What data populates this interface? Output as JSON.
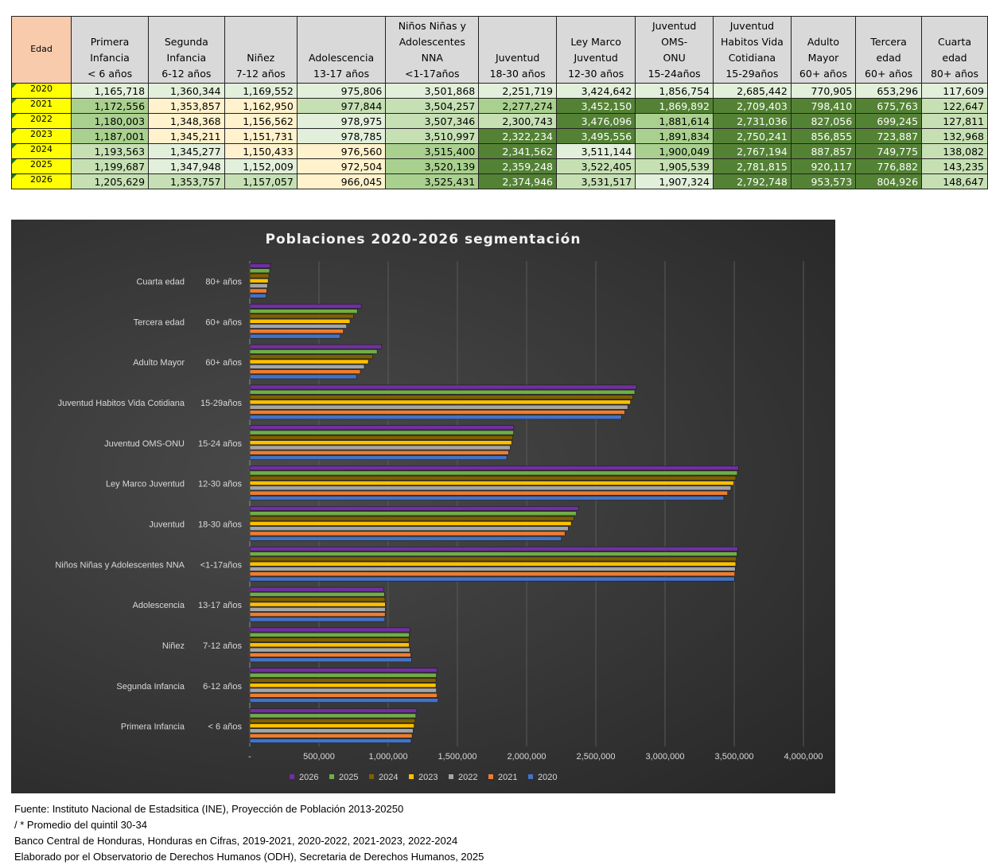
{
  "table": {
    "corner_label": "Edad",
    "columns": [
      {
        "key": "primera_infancia",
        "header": "Primera\nInfancia\n< 6 años"
      },
      {
        "key": "segunda_infancia",
        "header": "Segunda\nInfancia\n6-12 años"
      },
      {
        "key": "ninez",
        "header": "Niñez\n7-12 años"
      },
      {
        "key": "adolescencia",
        "header": "Adolescencia\n13-17 años"
      },
      {
        "key": "nna",
        "header": "Niños Niñas y\nAdolescentes\nNNA\n<1-17años"
      },
      {
        "key": "juventud",
        "header": "Juventud\n18-30 años"
      },
      {
        "key": "ley_marco",
        "header": "Ley Marco\nJuventud\n12-30 años"
      },
      {
        "key": "oms_onu",
        "header": "Juventud OMS-\nONU\n15-24años"
      },
      {
        "key": "habitos",
        "header": "Juventud\nHabitos Vida\nCotidiana\n15-29años"
      },
      {
        "key": "adulto_mayor",
        "header": "Adulto\nMayor\n60+ años"
      },
      {
        "key": "tercera_edad",
        "header": "Tercera\nedad\n60+ años"
      },
      {
        "key": "cuarta_edad",
        "header": "Cuarta edad\n80+ años"
      }
    ],
    "rows": [
      {
        "year": "2020",
        "values": [
          "1,165,718",
          "1,360,344",
          "1,169,552",
          "975,806",
          "3,501,868",
          "2,251,719",
          "3,424,642",
          "1,856,754",
          "2,685,442",
          "770,905",
          "653,296",
          "117,609"
        ],
        "shades": [
          "s0",
          "s0",
          "s0",
          "s0",
          "s0",
          "s0",
          "s0",
          "s0",
          "s0",
          "s0",
          "s0",
          "s0"
        ]
      },
      {
        "year": "2021",
        "values": [
          "1,172,556",
          "1,353,857",
          "1,162,950",
          "977,844",
          "3,504,257",
          "2,277,274",
          "3,452,150",
          "1,869,892",
          "2,709,403",
          "798,410",
          "675,763",
          "122,647"
        ],
        "shades": [
          "s2",
          "sy",
          "sy",
          "s1",
          "s1",
          "s2",
          "s3",
          "s3",
          "s3",
          "s3",
          "s3",
          "s1"
        ]
      },
      {
        "year": "2022",
        "values": [
          "1,180,003",
          "1,348,368",
          "1,156,562",
          "978,975",
          "3,507,346",
          "2,300,743",
          "3,476,096",
          "1,881,614",
          "2,731,036",
          "827,056",
          "699,245",
          "127,811"
        ],
        "shades": [
          "s2",
          "sy",
          "sy",
          "s0",
          "s1",
          "s1",
          "s3",
          "s2",
          "s3",
          "s3",
          "s3",
          "s1"
        ]
      },
      {
        "year": "2023",
        "values": [
          "1,187,001",
          "1,345,211",
          "1,151,731",
          "978,785",
          "3,510,997",
          "2,322,234",
          "3,495,556",
          "1,891,834",
          "2,750,241",
          "856,855",
          "723,887",
          "132,968"
        ],
        "shades": [
          "s2",
          "sy",
          "sy",
          "s0",
          "s1",
          "s3",
          "s3",
          "s2",
          "s3",
          "s3",
          "s3",
          "s1"
        ]
      },
      {
        "year": "2024",
        "values": [
          "1,193,563",
          "1,345,277",
          "1,150,433",
          "976,560",
          "3,515,400",
          "2,341,562",
          "3,511,144",
          "1,900,049",
          "2,767,194",
          "887,857",
          "749,775",
          "138,082"
        ],
        "shades": [
          "s1",
          "s0",
          "sy",
          "sy",
          "s2",
          "s3",
          "s0",
          "s2",
          "s3",
          "s3",
          "s3",
          "s1"
        ]
      },
      {
        "year": "2025",
        "values": [
          "1,199,687",
          "1,347,948",
          "1,152,009",
          "972,504",
          "3,520,139",
          "2,359,248",
          "3,522,405",
          "1,905,539",
          "2,781,815",
          "920,117",
          "776,882",
          "143,235"
        ],
        "shades": [
          "s1",
          "s0",
          "s0",
          "sy",
          "s2",
          "s3",
          "s1",
          "s1",
          "s3",
          "s3",
          "s3",
          "s1"
        ]
      },
      {
        "year": "2026",
        "values": [
          "1,205,629",
          "1,353,757",
          "1,157,057",
          "966,045",
          "3,525,431",
          "2,374,946",
          "3,531,517",
          "1,907,324",
          "2,792,748",
          "953,573",
          "804,926",
          "148,647"
        ],
        "shades": [
          "s1",
          "s1",
          "s1",
          "sy",
          "s2",
          "s3",
          "s1",
          "s0",
          "s3",
          "s3",
          "s3",
          "s1"
        ]
      }
    ]
  },
  "chart_data": {
    "type": "bar",
    "orientation": "horizontal",
    "title": "Poblaciones  2020-2026 segmentación",
    "xlabel": "",
    "ylabel": "",
    "xlim": [
      0,
      4000000
    ],
    "x_ticks": [
      0,
      500000,
      1000000,
      1500000,
      2000000,
      2500000,
      3000000,
      3500000,
      4000000
    ],
    "x_tick_labels": [
      "-",
      "500,000",
      "1,000,000",
      "1,500,000",
      "2,000,000",
      "2,500,000",
      "3,000,000",
      "3,500,000",
      "4,000,000"
    ],
    "grid": true,
    "legend_position": "bottom",
    "categories": [
      {
        "name": "Primera Infancia",
        "range": "< 6 años"
      },
      {
        "name": "Segunda Infancia",
        "range": "6-12 años"
      },
      {
        "name": "Niñez",
        "range": "7-12 años"
      },
      {
        "name": "Adolescencia",
        "range": "13-17 años"
      },
      {
        "name": "Niños Niñas y Adolescentes  NNA",
        "range": "<1-17años"
      },
      {
        "name": "Juventud",
        "range": "18-30 años"
      },
      {
        "name": "Ley Marco Juventud",
        "range": "12-30 años"
      },
      {
        "name": "Juventud OMS-ONU",
        "range": "15-24 años"
      },
      {
        "name": "Juventud Habitos Vida Cotidiana",
        "range": "15-29años"
      },
      {
        "name": "Adulto Mayor",
        "range": "60+ años"
      },
      {
        "name": "Tercera edad",
        "range": "60+ años"
      },
      {
        "name": "Cuarta edad",
        "range": "80+ años"
      }
    ],
    "series": [
      {
        "name": "2020",
        "color": "#4472c4",
        "values": [
          1165718,
          1360344,
          1169552,
          975806,
          3501868,
          2251719,
          3424642,
          1856754,
          2685442,
          770905,
          653296,
          117609
        ]
      },
      {
        "name": "2021",
        "color": "#ed7d31",
        "values": [
          1172556,
          1353857,
          1162950,
          977844,
          3504257,
          2277274,
          3452150,
          1869892,
          2709403,
          798410,
          675763,
          122647
        ]
      },
      {
        "name": "2022",
        "color": "#a5a5a5",
        "values": [
          1180003,
          1348368,
          1156562,
          978975,
          3507346,
          2300743,
          3476096,
          1881614,
          2731036,
          827056,
          699245,
          127811
        ]
      },
      {
        "name": "2023",
        "color": "#ffc000",
        "values": [
          1187001,
          1345211,
          1151731,
          978785,
          3510997,
          2322234,
          3495556,
          1891834,
          2750241,
          856855,
          723887,
          132968
        ]
      },
      {
        "name": "2024",
        "color": "#7f6000",
        "values": [
          1193563,
          1345277,
          1150433,
          976560,
          3515400,
          2341562,
          3511144,
          1900049,
          2767194,
          887857,
          749775,
          138082
        ]
      },
      {
        "name": "2025",
        "color": "#70ad47",
        "values": [
          1199687,
          1347948,
          1152009,
          972504,
          3520139,
          2359248,
          3522405,
          1905539,
          2781815,
          920117,
          776882,
          143235
        ]
      },
      {
        "name": "2026",
        "color": "#7030a0",
        "values": [
          1205629,
          1353757,
          1157057,
          966045,
          3525431,
          2374946,
          3531517,
          1907324,
          2792748,
          953573,
          804926,
          148647
        ]
      }
    ],
    "legend_order": [
      "2026",
      "2025",
      "2024",
      "2023",
      "2022",
      "2021",
      "2020"
    ]
  },
  "notes": [
    "Fuente: Instituto Nacional de Estadsitica (INE), Proyección de Población 2013-20250",
    "/ * Promedio del quintil 30-34",
    "Banco Central de Honduras, Honduras en Cifras, 2019-2021, 2020-2022, 2021-2023, 2022-2024",
    "Elaborado por el Observatorio de Derechos Humanos (ODH), Secretaria de Derechos Humanos, 2025"
  ]
}
